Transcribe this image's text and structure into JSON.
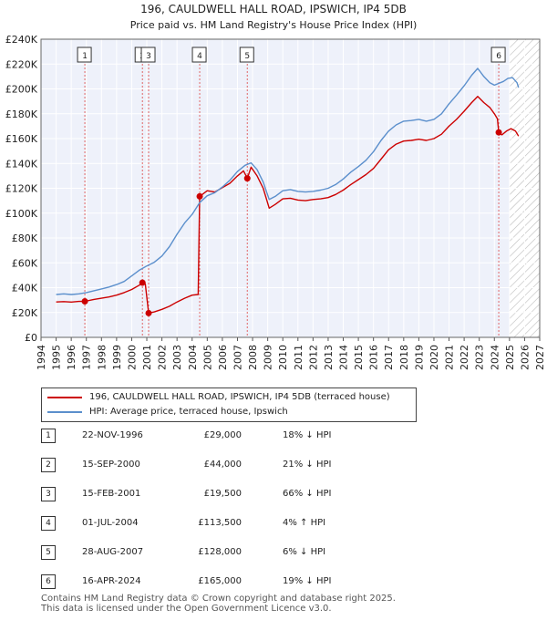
{
  "chart_data": {
    "type": "line",
    "title": "196, CAULDWELL HALL ROAD, IPSWICH, IP4 5DB",
    "subtitle": "Price paid vs. HM Land Registry's House Price Index (HPI)",
    "x_ticks": [
      "1994",
      "1995",
      "1996",
      "1997",
      "1998",
      "1999",
      "2000",
      "2001",
      "2002",
      "2003",
      "2004",
      "2005",
      "2006",
      "2007",
      "2008",
      "2009",
      "2010",
      "2011",
      "2012",
      "2013",
      "2014",
      "2015",
      "2016",
      "2017",
      "2018",
      "2019",
      "2020",
      "2021",
      "2022",
      "2023",
      "2024",
      "2025",
      "2026",
      "2027"
    ],
    "y_ticks": [
      "£0",
      "£20K",
      "£40K",
      "£60K",
      "£80K",
      "£100K",
      "£120K",
      "£140K",
      "£160K",
      "£180K",
      "£200K",
      "£220K",
      "£240K"
    ],
    "xlim": [
      1994,
      2027
    ],
    "ylim": [
      0,
      240000
    ],
    "series": [
      {
        "name": "196, CAULDWELL HALL ROAD, IPSWICH, IP4 5DB (terraced house)",
        "color": "#cc0000",
        "points": [
          [
            1995.0,
            28500
          ],
          [
            1995.5,
            28800
          ],
          [
            1996.0,
            28400
          ],
          [
            1996.5,
            28900
          ],
          [
            1996.9,
            29000
          ],
          [
            1997.5,
            30500
          ],
          [
            1998.0,
            31500
          ],
          [
            1998.5,
            32500
          ],
          [
            1999.0,
            34000
          ],
          [
            1999.5,
            36000
          ],
          [
            2000.0,
            38500
          ],
          [
            2000.5,
            42000
          ],
          [
            2000.71,
            44000
          ],
          [
            2000.9,
            43000
          ],
          [
            2001.12,
            19500
          ],
          [
            2001.5,
            20500
          ],
          [
            2002.0,
            22500
          ],
          [
            2002.5,
            25000
          ],
          [
            2003.0,
            28500
          ],
          [
            2003.5,
            31500
          ],
          [
            2004.0,
            34000
          ],
          [
            2004.4,
            34500
          ],
          [
            2004.5,
            113500
          ],
          [
            2005.0,
            118000
          ],
          [
            2005.5,
            117000
          ],
          [
            2006.0,
            120500
          ],
          [
            2006.5,
            124000
          ],
          [
            2007.0,
            130000
          ],
          [
            2007.4,
            134000
          ],
          [
            2007.65,
            128000
          ],
          [
            2007.9,
            137000
          ],
          [
            2008.3,
            130000
          ],
          [
            2008.7,
            120000
          ],
          [
            2009.1,
            104000
          ],
          [
            2009.5,
            107000
          ],
          [
            2010.0,
            111500
          ],
          [
            2010.5,
            112000
          ],
          [
            2011.0,
            110500
          ],
          [
            2011.5,
            110000
          ],
          [
            2012.0,
            111000
          ],
          [
            2012.5,
            111500
          ],
          [
            2013.0,
            112500
          ],
          [
            2013.5,
            115000
          ],
          [
            2014.0,
            118500
          ],
          [
            2014.5,
            123000
          ],
          [
            2015.0,
            127000
          ],
          [
            2015.5,
            131000
          ],
          [
            2016.0,
            136000
          ],
          [
            2016.5,
            143500
          ],
          [
            2017.0,
            151000
          ],
          [
            2017.5,
            155500
          ],
          [
            2018.0,
            158000
          ],
          [
            2018.5,
            158500
          ],
          [
            2019.0,
            159500
          ],
          [
            2019.5,
            158500
          ],
          [
            2020.0,
            160000
          ],
          [
            2020.5,
            163500
          ],
          [
            2021.0,
            170000
          ],
          [
            2021.5,
            175500
          ],
          [
            2022.0,
            182000
          ],
          [
            2022.5,
            189000
          ],
          [
            2022.9,
            194000
          ],
          [
            2023.3,
            189000
          ],
          [
            2023.7,
            185000
          ],
          [
            2024.0,
            180000
          ],
          [
            2024.2,
            176000
          ],
          [
            2024.29,
            165000
          ],
          [
            2024.5,
            163000
          ],
          [
            2024.8,
            166000
          ],
          [
            2025.1,
            168000
          ],
          [
            2025.4,
            166000
          ],
          [
            2025.6,
            162000
          ]
        ]
      },
      {
        "name": "HPI: Average price, terraced house, Ipswich",
        "color": "#5b8fcc",
        "points": [
          [
            1995.0,
            34500
          ],
          [
            1995.5,
            35000
          ],
          [
            1996.0,
            34500
          ],
          [
            1996.5,
            35000
          ],
          [
            1997.0,
            36000
          ],
          [
            1997.5,
            37500
          ],
          [
            1998.0,
            39000
          ],
          [
            1998.5,
            40500
          ],
          [
            1999.0,
            42500
          ],
          [
            1999.5,
            45000
          ],
          [
            2000.0,
            49500
          ],
          [
            2000.5,
            54000
          ],
          [
            2001.0,
            57500
          ],
          [
            2001.5,
            60500
          ],
          [
            2002.0,
            65500
          ],
          [
            2002.5,
            73000
          ],
          [
            2003.0,
            83000
          ],
          [
            2003.5,
            92000
          ],
          [
            2004.0,
            99000
          ],
          [
            2004.5,
            108500
          ],
          [
            2005.0,
            114000
          ],
          [
            2005.5,
            116500
          ],
          [
            2006.0,
            121000
          ],
          [
            2006.5,
            126500
          ],
          [
            2007.0,
            133500
          ],
          [
            2007.5,
            138500
          ],
          [
            2007.9,
            140500
          ],
          [
            2008.3,
            135000
          ],
          [
            2008.7,
            125000
          ],
          [
            2009.1,
            111000
          ],
          [
            2009.5,
            113500
          ],
          [
            2010.0,
            118000
          ],
          [
            2010.5,
            119000
          ],
          [
            2011.0,
            117500
          ],
          [
            2011.5,
            117000
          ],
          [
            2012.0,
            117500
          ],
          [
            2012.5,
            118500
          ],
          [
            2013.0,
            120000
          ],
          [
            2013.5,
            123000
          ],
          [
            2014.0,
            127500
          ],
          [
            2014.5,
            133000
          ],
          [
            2015.0,
            137500
          ],
          [
            2015.5,
            142500
          ],
          [
            2016.0,
            149500
          ],
          [
            2016.5,
            158500
          ],
          [
            2017.0,
            166000
          ],
          [
            2017.5,
            171000
          ],
          [
            2018.0,
            174000
          ],
          [
            2018.5,
            174500
          ],
          [
            2019.0,
            175500
          ],
          [
            2019.5,
            174000
          ],
          [
            2020.0,
            175500
          ],
          [
            2020.5,
            180000
          ],
          [
            2021.0,
            188000
          ],
          [
            2021.5,
            195000
          ],
          [
            2022.0,
            202500
          ],
          [
            2022.5,
            211000
          ],
          [
            2022.9,
            216500
          ],
          [
            2023.3,
            210000
          ],
          [
            2023.7,
            205000
          ],
          [
            2024.0,
            203000
          ],
          [
            2024.3,
            204500
          ],
          [
            2024.6,
            206000
          ],
          [
            2024.9,
            208500
          ],
          [
            2025.2,
            209000
          ],
          [
            2025.5,
            205000
          ],
          [
            2025.6,
            201000
          ]
        ]
      }
    ],
    "sales": [
      {
        "num": "1",
        "x": 1996.9,
        "price": 29000
      },
      {
        "num": "2",
        "x": 2000.71,
        "price": 44000
      },
      {
        "num": "3",
        "x": 2001.12,
        "price": 19500
      },
      {
        "num": "4",
        "x": 2004.5,
        "price": 113500
      },
      {
        "num": "5",
        "x": 2007.65,
        "price": 128000
      },
      {
        "num": "6",
        "x": 2024.29,
        "price": 165000
      }
    ],
    "hatch_from": 2025.0
  },
  "legend": {
    "price_paid": "196, CAULDWELL HALL ROAD, IPSWICH, IP4 5DB (terraced house)",
    "hpi": "HPI: Average price, terraced house, Ipswich",
    "price_color": "#cc0000",
    "hpi_color": "#5b8fcc"
  },
  "sales_table": [
    {
      "num": "1",
      "date": "22-NOV-1996",
      "price": "£29,000",
      "hpi": "18% ↓ HPI"
    },
    {
      "num": "2",
      "date": "15-SEP-2000",
      "price": "£44,000",
      "hpi": "21% ↓ HPI"
    },
    {
      "num": "3",
      "date": "15-FEB-2001",
      "price": "£19,500",
      "hpi": "66% ↓ HPI"
    },
    {
      "num": "4",
      "date": "01-JUL-2004",
      "price": "£113,500",
      "hpi": "4% ↑ HPI"
    },
    {
      "num": "5",
      "date": "28-AUG-2007",
      "price": "£128,000",
      "hpi": "6% ↓ HPI"
    },
    {
      "num": "6",
      "date": "16-APR-2024",
      "price": "£165,000",
      "hpi": "19% ↓ HPI"
    }
  ],
  "footer": {
    "line1": "Contains HM Land Registry data © Crown copyright and database right 2025.",
    "line2": "This data is licensed under the Open Government Licence v3.0."
  }
}
